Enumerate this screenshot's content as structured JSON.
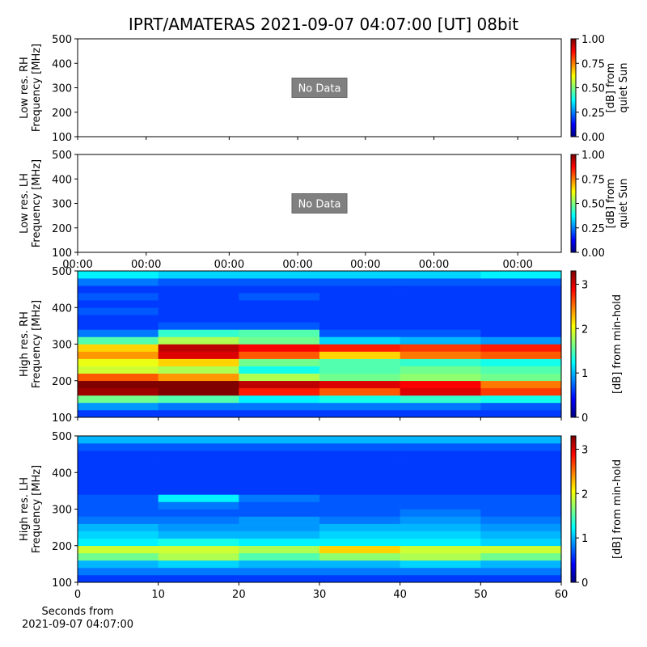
{
  "title": "IPRT/AMATERAS 2021-09-07 04:07:00 [UT]   08bit",
  "chart_data": [
    {
      "type": "heatmap",
      "ylabel": [
        "Low res. RH",
        "Frequency [MHz]"
      ],
      "annotation": "No Data",
      "xlim": [
        0,
        60
      ],
      "xticks": [
        0,
        8.5,
        18.8,
        27.3,
        35.7,
        44.2,
        54.6
      ],
      "show_xticklabels": false,
      "ylim": [
        100,
        500
      ],
      "yticks": [
        100,
        200,
        300,
        400,
        500
      ],
      "clim": [
        0,
        1
      ],
      "cticks": [
        {
          "value": 0,
          "label": "0.00"
        },
        {
          "value": 0.25,
          "label": "0.25"
        },
        {
          "value": 0.5,
          "label": "0.50"
        },
        {
          "value": 0.75,
          "label": "0.75"
        },
        {
          "value": 1,
          "label": "1.00"
        }
      ],
      "clabel": [
        "[dB] from",
        "quiet Sun"
      ],
      "colormap": "jet"
    },
    {
      "type": "heatmap",
      "ylabel": [
        "Low res. LH",
        "Frequency [MHz]"
      ],
      "annotation": "No Data",
      "xlim": [
        0,
        60
      ],
      "xticks": [
        {
          "value": 0,
          "label": "00:00"
        },
        {
          "value": 8.5,
          "label": "00:00"
        },
        {
          "value": 18.8,
          "label": "00:00"
        },
        {
          "value": 27.3,
          "label": "00:00"
        },
        {
          "value": 35.7,
          "label": "00:00"
        },
        {
          "value": 44.2,
          "label": "00:00"
        },
        {
          "value": 54.6,
          "label": "00:00"
        }
      ],
      "show_xticklabels": true,
      "ylim": [
        100,
        500
      ],
      "yticks": [
        100,
        200,
        300,
        400,
        500
      ],
      "clim": [
        0,
        1
      ],
      "cticks": [
        {
          "value": 0,
          "label": "0.00"
        },
        {
          "value": 0.25,
          "label": "0.25"
        },
        {
          "value": 0.5,
          "label": "0.50"
        },
        {
          "value": 0.75,
          "label": "0.75"
        },
        {
          "value": 1,
          "label": "1.00"
        }
      ],
      "clabel": [
        "[dB] from",
        "quiet Sun"
      ],
      "colormap": "jet"
    },
    {
      "type": "heatmap",
      "ylabel": [
        "High res. RH",
        "Frequency [MHz]"
      ],
      "xlim": [
        0,
        60
      ],
      "xticks": [
        0,
        10,
        20,
        30,
        40,
        50,
        60
      ],
      "show_xticklabels": false,
      "ylim": [
        100,
        500
      ],
      "yticks": [
        100,
        200,
        300,
        400,
        500
      ],
      "clim": [
        0,
        3.3
      ],
      "cticks": [
        0,
        1,
        2,
        3
      ],
      "clabel": [
        "[dB] from min-hold"
      ],
      "colormap": "jet",
      "x": [
        0,
        10,
        20,
        30,
        40,
        50,
        60
      ],
      "y": [
        100,
        120,
        140,
        160,
        180,
        200,
        220,
        240,
        260,
        280,
        300,
        320,
        340,
        360,
        380,
        400,
        420,
        440,
        460,
        480,
        500
      ],
      "z": [
        [
          0.6,
          0.6,
          0.6,
          0.6,
          0.6,
          0.6
        ],
        [
          0.9,
          0.8,
          0.8,
          0.8,
          0.8,
          0.7
        ],
        [
          1.6,
          1.5,
          1.2,
          1.3,
          1.4,
          1.3
        ],
        [
          3.2,
          3.3,
          2.8,
          2.6,
          3.0,
          2.7
        ],
        [
          3.3,
          3.3,
          3.1,
          3.0,
          2.9,
          2.5
        ],
        [
          2.6,
          2.4,
          1.8,
          1.6,
          1.7,
          1.6
        ],
        [
          1.9,
          1.8,
          1.3,
          1.5,
          1.6,
          1.5
        ],
        [
          2.0,
          2.2,
          1.6,
          1.5,
          1.4,
          1.3
        ],
        [
          2.4,
          3.0,
          2.6,
          2.2,
          2.5,
          2.6
        ],
        [
          2.2,
          3.1,
          2.9,
          2.8,
          2.7,
          2.8
        ],
        [
          1.5,
          1.8,
          1.6,
          1.1,
          1.0,
          0.9
        ],
        [
          0.8,
          1.4,
          1.5,
          0.7,
          0.7,
          0.6
        ],
        [
          0.6,
          0.7,
          0.7,
          0.6,
          0.6,
          0.6
        ],
        [
          0.6,
          0.6,
          0.6,
          0.6,
          0.6,
          0.6
        ],
        [
          0.7,
          0.6,
          0.6,
          0.6,
          0.6,
          0.6
        ],
        [
          0.6,
          0.6,
          0.6,
          0.6,
          0.6,
          0.6
        ],
        [
          0.7,
          0.6,
          0.7,
          0.6,
          0.6,
          0.6
        ],
        [
          0.6,
          0.6,
          0.6,
          0.6,
          0.6,
          0.6
        ],
        [
          0.8,
          0.7,
          0.7,
          0.7,
          0.7,
          0.7
        ],
        [
          1.2,
          1.1,
          1.1,
          1.1,
          1.1,
          1.2
        ]
      ]
    },
    {
      "type": "heatmap",
      "ylabel": [
        "High res. LH",
        "Frequency [MHz]"
      ],
      "xlabel": [
        "Seconds from",
        "2021-09-07 04:07:00"
      ],
      "xlim": [
        0,
        60
      ],
      "xticks": [
        0,
        10,
        20,
        30,
        40,
        50,
        60
      ],
      "show_xticklabels": true,
      "ylim": [
        100,
        500
      ],
      "yticks": [
        100,
        200,
        300,
        400,
        500
      ],
      "clim": [
        0,
        3.3
      ],
      "cticks": [
        0,
        1,
        2,
        3
      ],
      "clabel": [
        "[dB] from min-hold"
      ],
      "colormap": "jet",
      "x": [
        0,
        10,
        20,
        30,
        40,
        50,
        60
      ],
      "y": [
        100,
        120,
        140,
        160,
        180,
        200,
        220,
        240,
        260,
        280,
        300,
        320,
        340,
        360,
        380,
        400,
        420,
        440,
        460,
        480,
        500
      ],
      "z": [
        [
          0.6,
          0.6,
          0.6,
          0.6,
          0.6,
          0.6
        ],
        [
          0.8,
          0.8,
          0.8,
          0.8,
          0.8,
          0.8
        ],
        [
          1.0,
          1.1,
          1.0,
          1.0,
          1.1,
          1.0
        ],
        [
          1.6,
          1.8,
          1.5,
          1.7,
          1.8,
          1.6
        ],
        [
          1.9,
          1.9,
          1.8,
          2.2,
          1.9,
          1.9
        ],
        [
          1.2,
          1.3,
          1.2,
          1.2,
          1.2,
          1.1
        ],
        [
          1.1,
          1.0,
          1.0,
          1.1,
          1.1,
          1.0
        ],
        [
          1.0,
          0.9,
          0.9,
          1.0,
          1.0,
          0.9
        ],
        [
          0.8,
          0.8,
          0.9,
          0.8,
          0.9,
          0.8
        ],
        [
          0.7,
          0.7,
          0.7,
          0.7,
          0.8,
          0.7
        ],
        [
          0.7,
          0.8,
          0.7,
          0.7,
          0.7,
          0.7
        ],
        [
          0.7,
          1.2,
          0.8,
          0.7,
          0.7,
          0.7
        ],
        [
          0.6,
          0.6,
          0.6,
          0.6,
          0.6,
          0.6
        ],
        [
          0.6,
          0.6,
          0.6,
          0.6,
          0.6,
          0.6
        ],
        [
          0.6,
          0.6,
          0.6,
          0.6,
          0.6,
          0.6
        ],
        [
          0.6,
          0.6,
          0.6,
          0.6,
          0.6,
          0.6
        ],
        [
          0.6,
          0.6,
          0.6,
          0.6,
          0.6,
          0.6
        ],
        [
          0.6,
          0.6,
          0.6,
          0.6,
          0.6,
          0.6
        ],
        [
          0.7,
          0.7,
          0.7,
          0.7,
          0.7,
          0.7
        ],
        [
          1.0,
          1.0,
          1.0,
          1.0,
          1.0,
          1.0
        ]
      ]
    }
  ]
}
